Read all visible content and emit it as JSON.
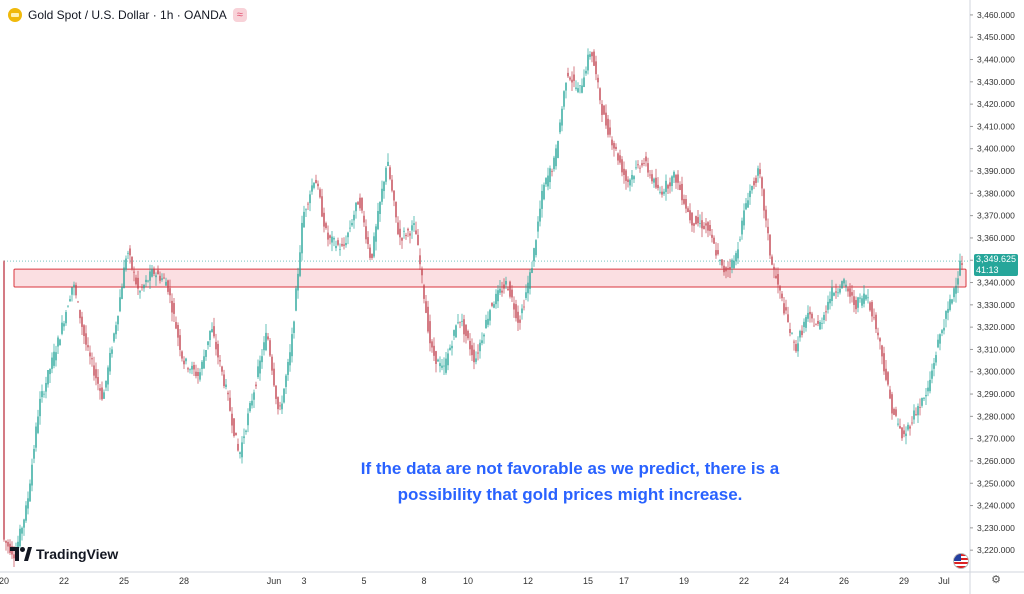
{
  "header": {
    "symbol": "Gold Spot / U.S. Dollar · 1h · OANDA",
    "gold_icon": "gold-coin-icon",
    "indicator_icon": "wave-icon",
    "indicator_glyph": "≈"
  },
  "logo": {
    "text": "TradingView"
  },
  "annotation": {
    "line1": "If the data are not favorable as we predict, there is a",
    "line2": "possibility that gold prices might increase."
  },
  "price_tag": {
    "price": "3,349.625",
    "countdown": "41:13"
  },
  "colors": {
    "up": "#26a69a",
    "down": "#c2434f",
    "zone_fill": "#fbdfe2",
    "zone_stroke": "#d9363e",
    "text": "#131722",
    "axis_text": "#333333"
  },
  "chart_data": {
    "type": "candlestick",
    "y_ticks": [
      "3,460.000",
      "3,450.000",
      "3,440.000",
      "3,430.000",
      "3,420.000",
      "3,410.000",
      "3,400.000",
      "3,390.000",
      "3,380.000",
      "3,370.000",
      "3,360.000",
      "3,350.000",
      "3,340.000",
      "3,330.000",
      "3,320.000",
      "3,310.000",
      "3,300.000",
      "3,290.000",
      "3,280.000",
      "3,270.000",
      "3,260.000",
      "3,250.000",
      "3,240.000",
      "3,230.000",
      "3,220.000"
    ],
    "y_tick_values": [
      3460,
      3450,
      3440,
      3430,
      3420,
      3410,
      3400,
      3390,
      3380,
      3370,
      3360,
      3350,
      3340,
      3330,
      3320,
      3310,
      3300,
      3290,
      3280,
      3270,
      3260,
      3250,
      3240,
      3230,
      3220
    ],
    "ylim": [
      3212,
      3464
    ],
    "x_ticks": [
      "20",
      "22",
      "25",
      "28",
      "Jun",
      "3",
      "5",
      "8",
      "10",
      "12",
      "15",
      "17",
      "19",
      "22",
      "24",
      "26",
      "29",
      "Jul"
    ],
    "x_tick_index": [
      0,
      30,
      60,
      90,
      135,
      150,
      180,
      210,
      232,
      262,
      292,
      310,
      340,
      370,
      390,
      420,
      450,
      470
    ],
    "bar_count": 480,
    "zone": {
      "low": 3338,
      "high": 3346
    },
    "current_price": 3349.625,
    "path_anchors": [
      [
        0,
        3225
      ],
      [
        6,
        3218
      ],
      [
        12,
        3240
      ],
      [
        18,
        3285
      ],
      [
        28,
        3315
      ],
      [
        35,
        3340
      ],
      [
        42,
        3310
      ],
      [
        50,
        3288
      ],
      [
        58,
        3330
      ],
      [
        62,
        3355
      ],
      [
        68,
        3335
      ],
      [
        75,
        3345
      ],
      [
        82,
        3340
      ],
      [
        90,
        3305
      ],
      [
        98,
        3298
      ],
      [
        104,
        3320
      ],
      [
        112,
        3290
      ],
      [
        118,
        3262
      ],
      [
        125,
        3290
      ],
      [
        132,
        3318
      ],
      [
        138,
        3280
      ],
      [
        144,
        3310
      ],
      [
        150,
        3370
      ],
      [
        156,
        3388
      ],
      [
        162,
        3360
      ],
      [
        170,
        3355
      ],
      [
        178,
        3378
      ],
      [
        184,
        3350
      ],
      [
        192,
        3395
      ],
      [
        198,
        3360
      ],
      [
        206,
        3365
      ],
      [
        214,
        3310
      ],
      [
        220,
        3300
      ],
      [
        228,
        3325
      ],
      [
        236,
        3305
      ],
      [
        244,
        3330
      ],
      [
        252,
        3340
      ],
      [
        258,
        3322
      ],
      [
        264,
        3345
      ],
      [
        270,
        3382
      ],
      [
        276,
        3395
      ],
      [
        282,
        3435
      ],
      [
        288,
        3425
      ],
      [
        294,
        3445
      ],
      [
        300,
        3415
      ],
      [
        306,
        3400
      ],
      [
        312,
        3385
      ],
      [
        320,
        3395
      ],
      [
        328,
        3380
      ],
      [
        336,
        3388
      ],
      [
        344,
        3368
      ],
      [
        352,
        3365
      ],
      [
        360,
        3345
      ],
      [
        366,
        3350
      ],
      [
        372,
        3378
      ],
      [
        378,
        3390
      ],
      [
        384,
        3350
      ],
      [
        390,
        3330
      ],
      [
        396,
        3310
      ],
      [
        402,
        3325
      ],
      [
        408,
        3320
      ],
      [
        414,
        3335
      ],
      [
        420,
        3340
      ],
      [
        426,
        3330
      ],
      [
        432,
        3335
      ],
      [
        438,
        3315
      ],
      [
        444,
        3285
      ],
      [
        450,
        3270
      ],
      [
        456,
        3282
      ],
      [
        462,
        3290
      ],
      [
        468,
        3315
      ],
      [
        474,
        3332
      ],
      [
        479,
        3349.6
      ]
    ]
  }
}
